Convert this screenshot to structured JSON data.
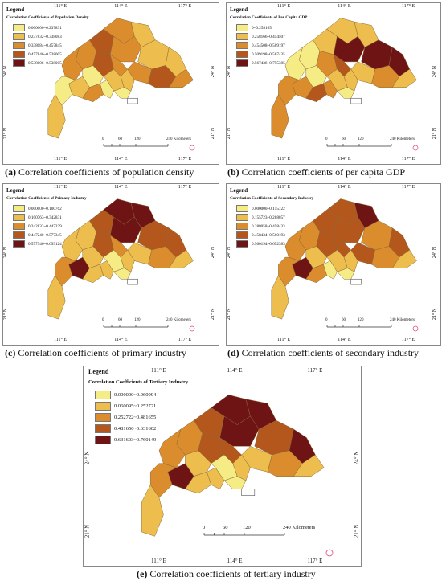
{
  "panels": [
    {
      "id": "a",
      "legend_title": "Legend",
      "legend_subtitle": "Correlation Coefficients of Population Density",
      "classes": [
        "0.000000~0.237831",
        "0.237832~0.338083",
        "0.338084~0.457845",
        "0.457846~0.538005",
        "0.538006~0.538005"
      ],
      "caption_letter": "(a)",
      "caption_text": " Correlation coefficients of population density",
      "top_ticks": [
        "111° E",
        "114° E",
        "117° E"
      ],
      "left_ticks": [
        "24° N",
        "21° N"
      ],
      "scale": [
        "0",
        "60",
        "120",
        "240 Kilometers"
      ],
      "region_classes": [
        2,
        2,
        3,
        2,
        1,
        3,
        2,
        1,
        1,
        2,
        3,
        2,
        2,
        1,
        1,
        0,
        0,
        0,
        1,
        2,
        0,
        1
      ]
    },
    {
      "id": "b",
      "legend_title": "Legend",
      "legend_subtitle": "Correlation Coefficients of Per Capita GDP",
      "classes": [
        "0~0.258165",
        "0.258166~0.454507",
        "0.454508~0.509197",
        "0.509198~0.567435",
        "0.567436~0.755385"
      ],
      "caption_letter": "(b)",
      "caption_text": " Correlation coefficients of per capita GDP",
      "top_ticks": [
        "111° E",
        "114° E",
        "117° E"
      ],
      "left_ticks": [
        "24° N",
        "21° N"
      ],
      "scale": [
        "0",
        "60",
        "120",
        "240 Kilometers"
      ],
      "region_classes": [
        0,
        0,
        1,
        1,
        1,
        2,
        4,
        4,
        4,
        1,
        2,
        1,
        3,
        1,
        1,
        2,
        0,
        0,
        2,
        3,
        2,
        2
      ]
    },
    {
      "id": "c",
      "legend_title": "Legend",
      "legend_subtitle": "Correlation Coefficients of Primary Industry",
      "classes": [
        "0.000000~0.100762",
        "0.100763~0.342831",
        "0.342832~0.447239",
        "0.447240~0.577345",
        "0.577346~0.693124"
      ],
      "caption_letter": "(c)",
      "caption_text": " Correlation coefficients of primary industry",
      "top_ticks": [
        "111° E",
        "114° E",
        "117° E"
      ],
      "left_ticks": [
        "24° N",
        "21° N"
      ],
      "scale": [
        "0",
        "60",
        "120",
        "240 Kilometers"
      ],
      "region_classes": [
        1,
        1,
        3,
        4,
        4,
        3,
        4,
        3,
        3,
        1,
        2,
        1,
        2,
        0,
        1,
        1,
        0,
        1,
        4,
        1,
        2,
        1
      ]
    },
    {
      "id": "d",
      "legend_title": "Legend",
      "legend_subtitle": "Correlation Coefficients of Secondary Industry",
      "classes": [
        "0.000000~0.155722",
        "0.155723~0.288057",
        "0.288058~0.458433",
        "0.458434~0.560193",
        "0.560194~0.652383"
      ],
      "caption_letter": "(d)",
      "caption_text": " Correlation coefficients of secondary industry",
      "top_ticks": [
        "111° E",
        "114° E",
        "117° E"
      ],
      "left_ticks": [
        "24° N",
        "21° N"
      ],
      "scale": [
        "0",
        "60",
        "120",
        "240 Kilometers"
      ],
      "region_classes": [
        2,
        2,
        3,
        3,
        4,
        3,
        3,
        2,
        3,
        3,
        2,
        1,
        3,
        1,
        1,
        0,
        0,
        1,
        4,
        2,
        2,
        1
      ]
    },
    {
      "id": "e",
      "legend_title": "Legend",
      "legend_subtitle": "Correlation Coefficients of Tertiary Industry",
      "classes": [
        "0.000000~0.060094",
        "0.060095~0.252721",
        "0.252722~0.481655",
        "0.481656~0.631602",
        "0.631603~0.760149"
      ],
      "caption_letter": "(e)",
      "caption_text": " Correlation coefficients of tertiary industry",
      "top_ticks": [
        "111° E",
        "114° E",
        "117° E"
      ],
      "left_ticks": [
        "24° N",
        "21° N"
      ],
      "scale": [
        "0",
        "60",
        "120",
        "240 Kilometers"
      ],
      "region_classes": [
        2,
        2,
        3,
        4,
        4,
        3,
        4,
        3,
        4,
        1,
        2,
        1,
        3,
        0,
        1,
        1,
        0,
        1,
        4,
        1,
        2,
        1
      ]
    }
  ],
  "colors": [
    "#f6ec85",
    "#edbe4e",
    "#db8c2c",
    "#b3571d",
    "#6f1414"
  ],
  "map_colors": {
    "border": "#8a6a3a",
    "outline": "#555555",
    "north_arrow": "#e0507a"
  }
}
